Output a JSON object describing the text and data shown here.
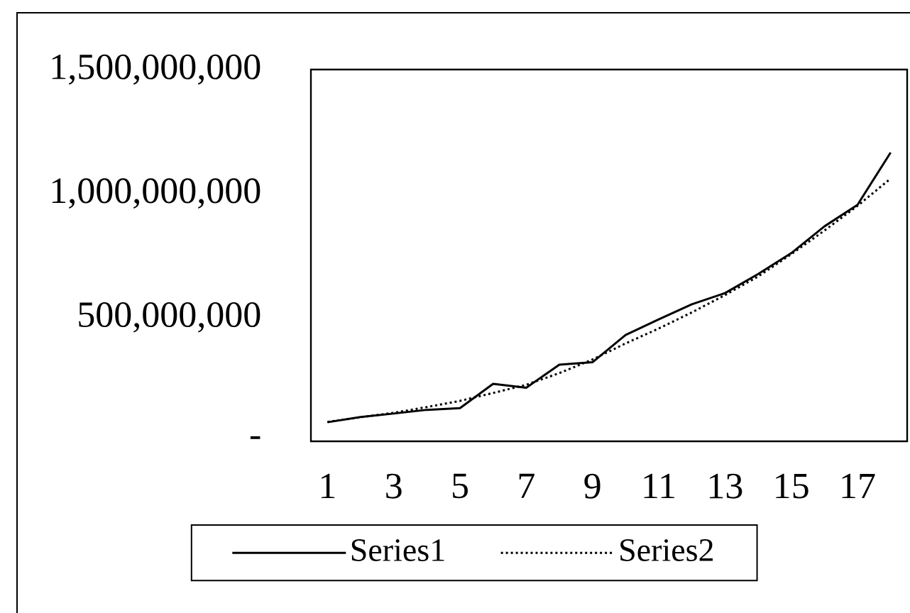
{
  "chart_data": {
    "type": "line",
    "categories": [
      "1",
      null,
      "3",
      null,
      "5",
      null,
      "7",
      null,
      "9",
      null,
      "11",
      null,
      "13",
      null,
      "15",
      null,
      "17",
      null
    ],
    "series": [
      {
        "name": "Series1",
        "color": "#000000",
        "line_style": "solid",
        "values": [
          77000000,
          98000000,
          112000000,
          127000000,
          134000000,
          232000000,
          216000000,
          309000000,
          319000000,
          429000000,
          492000000,
          553000000,
          598000000,
          675000000,
          759000000,
          867000000,
          954000000,
          1165000000
        ]
      },
      {
        "name": "Series2",
        "color": "#000000",
        "line_style": "dotted",
        "values": [
          78000000,
          97000000,
          115000000,
          138000000,
          163000000,
          195000000,
          228000000,
          275000000,
          330000000,
          395000000,
          455000000,
          520000000,
          590000000,
          665000000,
          755000000,
          850000000,
          950000000,
          1060000000
        ]
      }
    ],
    "ylim": [
      0,
      1500000000
    ],
    "yticks": [
      {
        "value": 0,
        "label": "-"
      },
      {
        "value": 500000000,
        "label": "500,000,000"
      },
      {
        "value": 1000000000,
        "label": "1,000,000,000"
      },
      {
        "value": 1500000000,
        "label": "1,500,000,000"
      }
    ],
    "legend": "bottom",
    "grid": false,
    "marker": "none"
  }
}
